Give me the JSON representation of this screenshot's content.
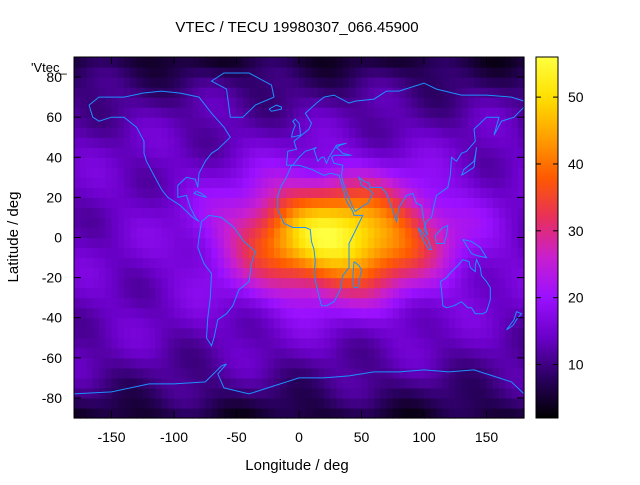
{
  "chart_data": {
    "type": "heatmap",
    "title": "VTEC / TECU 19980307_066.45900",
    "xlabel": "Longitude / deg",
    "ylabel": "Latitude / deg",
    "xlim": [
      -180,
      180
    ],
    "ylim": [
      -90,
      90
    ],
    "x_ticks": [
      -150,
      -100,
      -50,
      0,
      50,
      100,
      150
    ],
    "y_ticks": [
      -80,
      -60,
      -40,
      -20,
      0,
      20,
      40,
      60,
      80
    ],
    "colorbar": {
      "range": [
        2,
        56
      ],
      "ticks": [
        10,
        20,
        30,
        40,
        50
      ],
      "colormap": [
        "#000000",
        "#2a0060",
        "#6a00c8",
        "#9a10ff",
        "#c81fd0",
        "#e8305a",
        "#ff5a00",
        "#ffa000",
        "#ffe000",
        "#ffff40"
      ]
    },
    "series_label": "'Vtec_",
    "anomaly": {
      "center_lon": 30,
      "center_lat": 0,
      "peak_value": 55,
      "background_value": 14,
      "polar_value": 5
    },
    "coastline_color": "#1e90ff"
  }
}
